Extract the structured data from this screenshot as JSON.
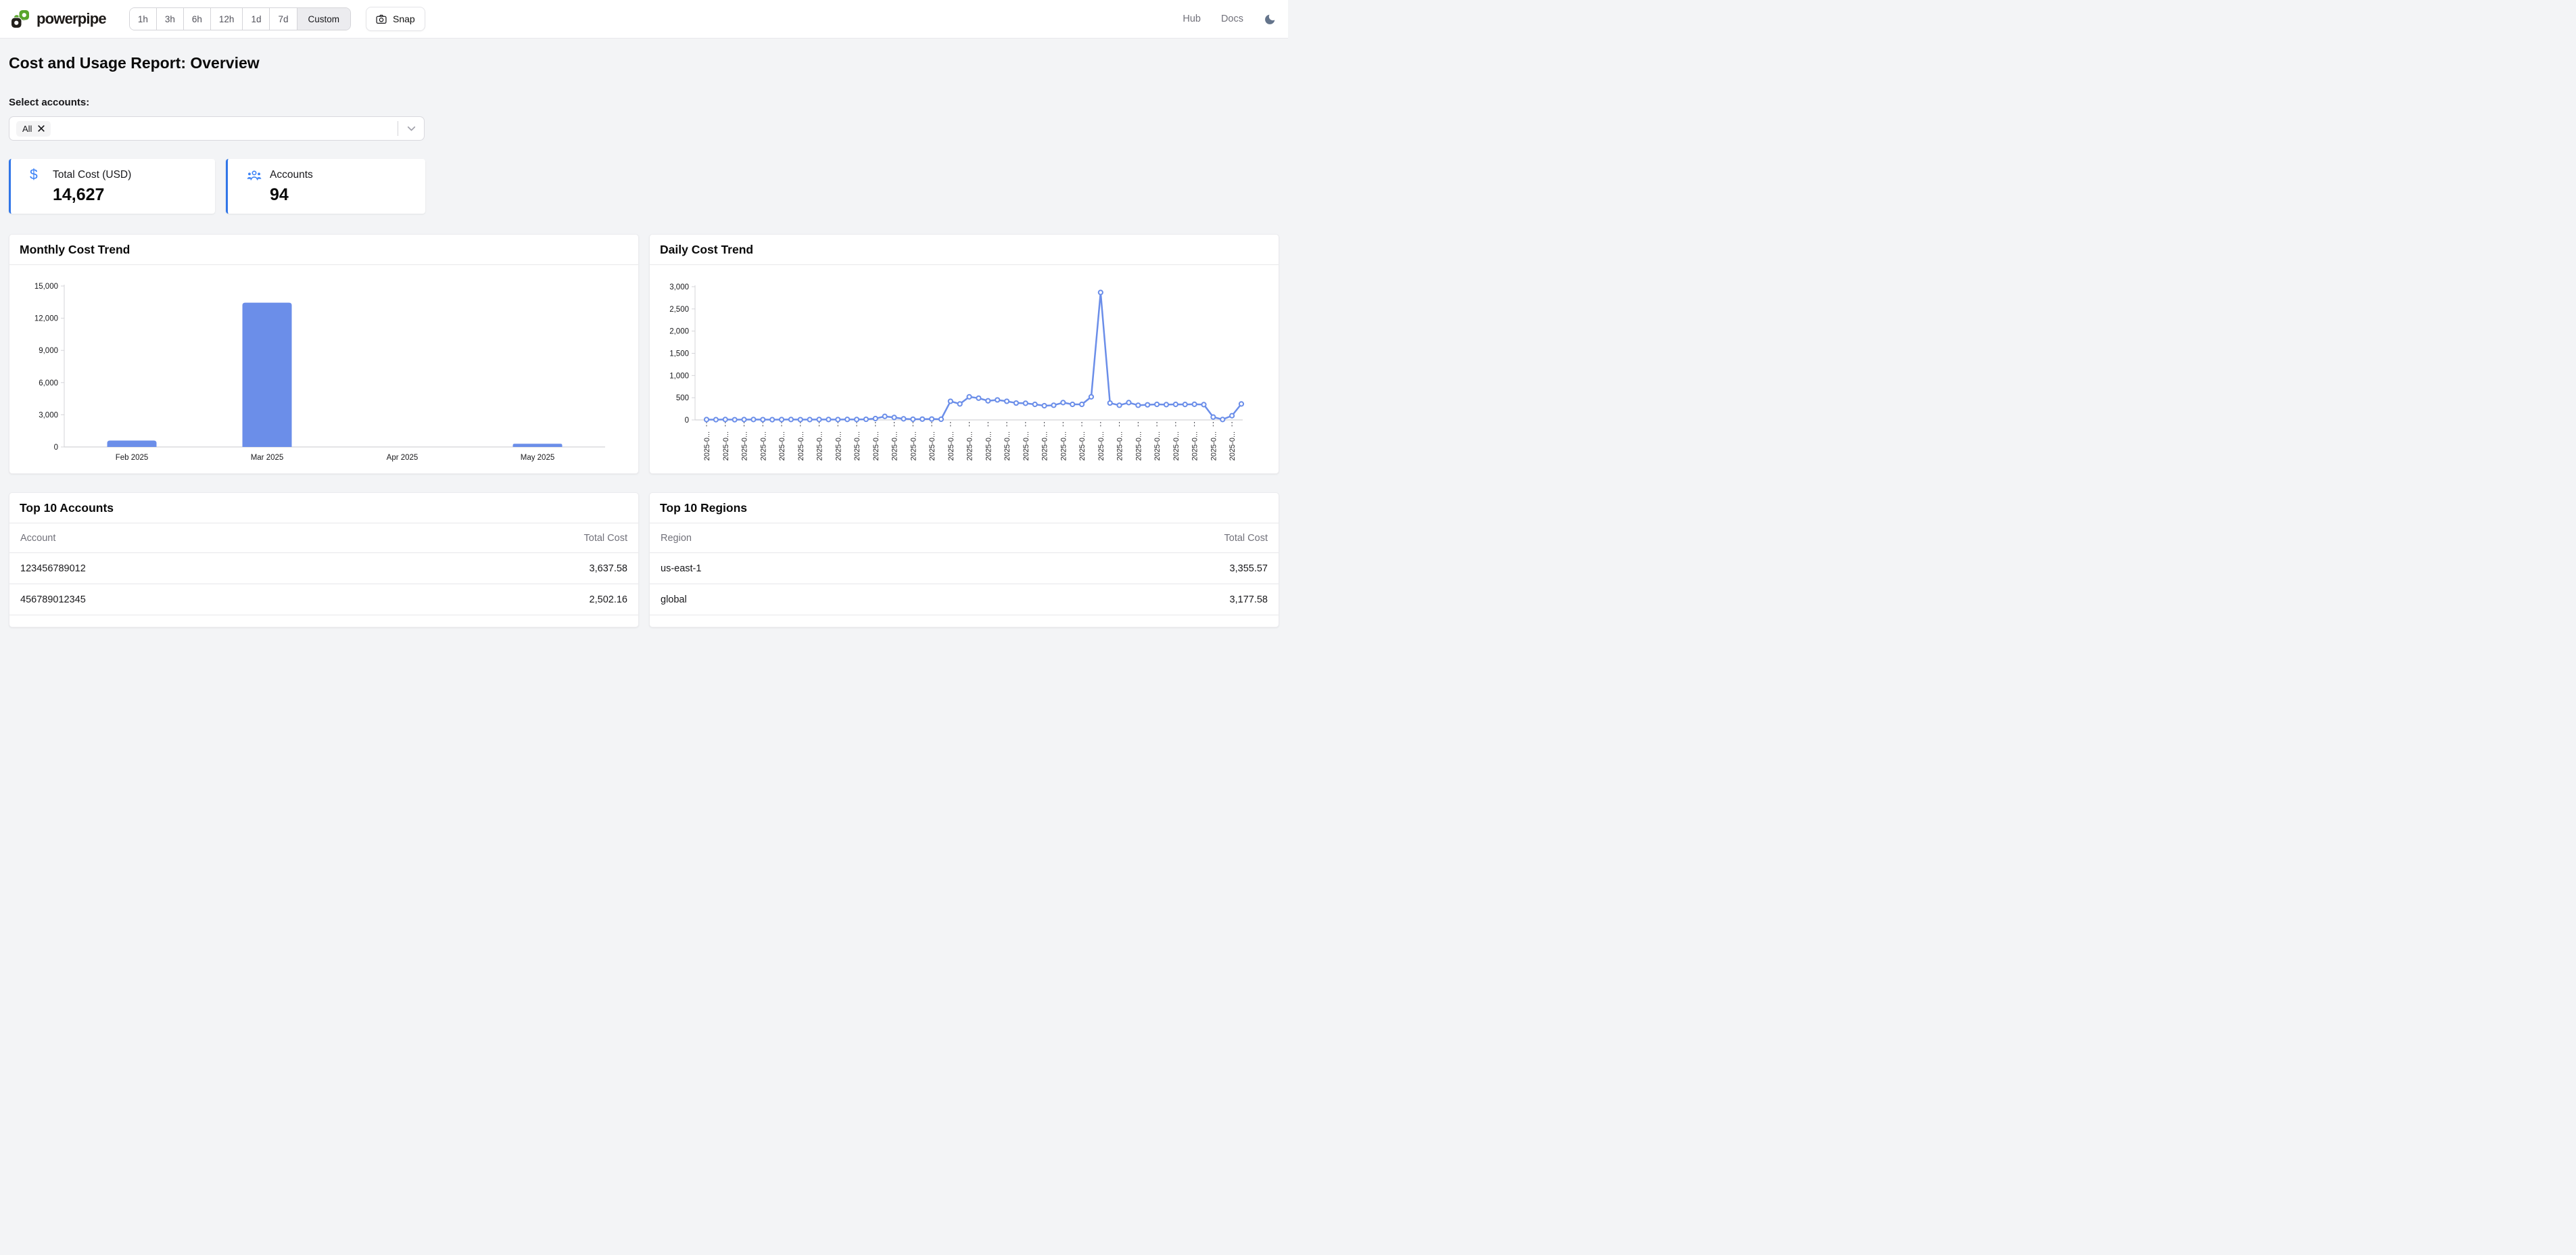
{
  "header": {
    "brand": "powerpipe",
    "time_ranges": [
      "1h",
      "3h",
      "6h",
      "12h",
      "1d",
      "7d",
      "Custom"
    ],
    "selected_range": "Custom",
    "snap_label": "Snap",
    "nav_links": [
      "Hub",
      "Docs"
    ]
  },
  "page": {
    "title": "Cost and Usage Report: Overview",
    "select_accounts_label": "Select accounts:",
    "selected_account": "All"
  },
  "stats": [
    {
      "icon": "dollar-icon",
      "label": "Total Cost (USD)",
      "value": "14,627"
    },
    {
      "icon": "users-icon",
      "label": "Accounts",
      "value": "94"
    }
  ],
  "chart_data": [
    {
      "type": "bar",
      "title": "Monthly Cost Trend",
      "categories": [
        "Feb 2025",
        "Mar 2025",
        "Apr 2025",
        "May 2025"
      ],
      "values": [
        600,
        13450,
        0,
        300
      ],
      "xlabel": "",
      "ylabel": "",
      "ylim": [
        0,
        15000
      ],
      "yticks": [
        0,
        3000,
        6000,
        9000,
        12000,
        15000
      ],
      "ytick_labels": [
        "0",
        "3,000",
        "6,000",
        "9,000",
        "12,000",
        "15,000"
      ],
      "grid": false,
      "legend": false,
      "series_color": "#6b8ee9"
    },
    {
      "type": "line",
      "title": "Daily Cost Trend",
      "x_tick_label_truncated": "2025-0...",
      "x_label_every": 2,
      "values": [
        8,
        6,
        9,
        5,
        8,
        10,
        7,
        6,
        8,
        9,
        7,
        8,
        10,
        9,
        8,
        11,
        10,
        14,
        30,
        80,
        55,
        25,
        15,
        18,
        20,
        15,
        420,
        360,
        520,
        490,
        430,
        450,
        420,
        380,
        375,
        350,
        320,
        330,
        390,
        350,
        350,
        520,
        2870,
        380,
        330,
        390,
        330,
        340,
        350,
        345,
        350,
        348,
        352,
        345,
        65,
        10,
        95,
        360
      ],
      "xlabel": "",
      "ylabel": "",
      "ylim": [
        0,
        3000
      ],
      "yticks": [
        0,
        500,
        1000,
        1500,
        2000,
        2500,
        3000
      ],
      "ytick_labels": [
        "0",
        "500",
        "1,000",
        "1,500",
        "2,000",
        "2,500",
        "3,000"
      ],
      "grid": false,
      "legend": false,
      "markers": true,
      "series_color": "#6b8ee9"
    }
  ],
  "tables": [
    {
      "title": "Top 10 Accounts",
      "columns": [
        "Account",
        "Total Cost"
      ],
      "rows": [
        [
          "123456789012",
          "3,637.58"
        ],
        [
          "456789012345",
          "2,502.16"
        ]
      ]
    },
    {
      "title": "Top 10 Regions",
      "columns": [
        "Region",
        "Total Cost"
      ],
      "rows": [
        [
          "us-east-1",
          "3,355.57"
        ],
        [
          "global",
          "3,177.58"
        ]
      ]
    }
  ],
  "colors": {
    "accent_blue": "#3176e8",
    "icon_blue": "#3b82f6",
    "series_blue": "#6b8ee9",
    "brand_green": "#59a52c",
    "background": "#f3f4f6"
  }
}
